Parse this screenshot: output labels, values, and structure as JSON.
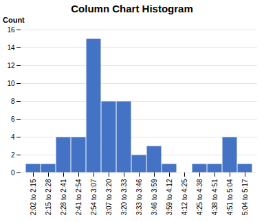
{
  "chart_data": {
    "type": "bar",
    "title": "Column Chart Histogram",
    "ylabel": "Count",
    "categories": [
      "2:02 to 2:15",
      "2:15 to 2:28",
      "2:28 to 2:41",
      "2:41 to 2:54",
      "2:54 to 3:07",
      "3:07 to 3:20",
      "3:20 to 3:33",
      "3:33 to 3:46",
      "3:46 to 3:59",
      "3:59 to 4:12",
      "4:12 to 4:25",
      "4:25 to 4:38",
      "4:38 to 4:51",
      "4:51 to 5:04",
      "5:04 to 5:17"
    ],
    "values": [
      1,
      1,
      4,
      4,
      15,
      8,
      8,
      2,
      3,
      1,
      0,
      1,
      1,
      4,
      1
    ],
    "color": "#4472c4",
    "ylim": [
      0,
      16
    ],
    "yticks": [
      0,
      2,
      4,
      6,
      8,
      10,
      12,
      14,
      16
    ],
    "grid": true
  }
}
